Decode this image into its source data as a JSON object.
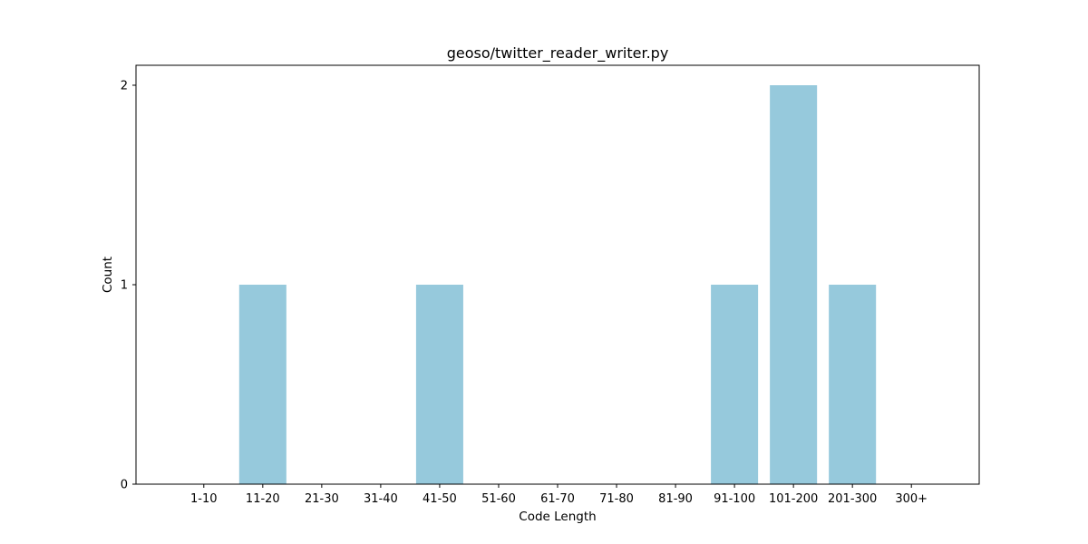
{
  "chart_data": {
    "type": "bar",
    "title": "geoso/twitter_reader_writer.py",
    "xlabel": "Code Length",
    "ylabel": "Count",
    "categories": [
      "1-10",
      "11-20",
      "21-30",
      "31-40",
      "41-50",
      "51-60",
      "61-70",
      "71-80",
      "81-90",
      "91-100",
      "101-200",
      "201-300",
      "300+"
    ],
    "values": [
      0,
      1,
      0,
      0,
      1,
      0,
      0,
      0,
      0,
      1,
      2,
      1,
      0
    ],
    "yticks": [
      "0",
      "1",
      "2"
    ],
    "ylim": [
      0,
      2.1
    ],
    "grid": false,
    "bar_color": "#96c9dc"
  }
}
